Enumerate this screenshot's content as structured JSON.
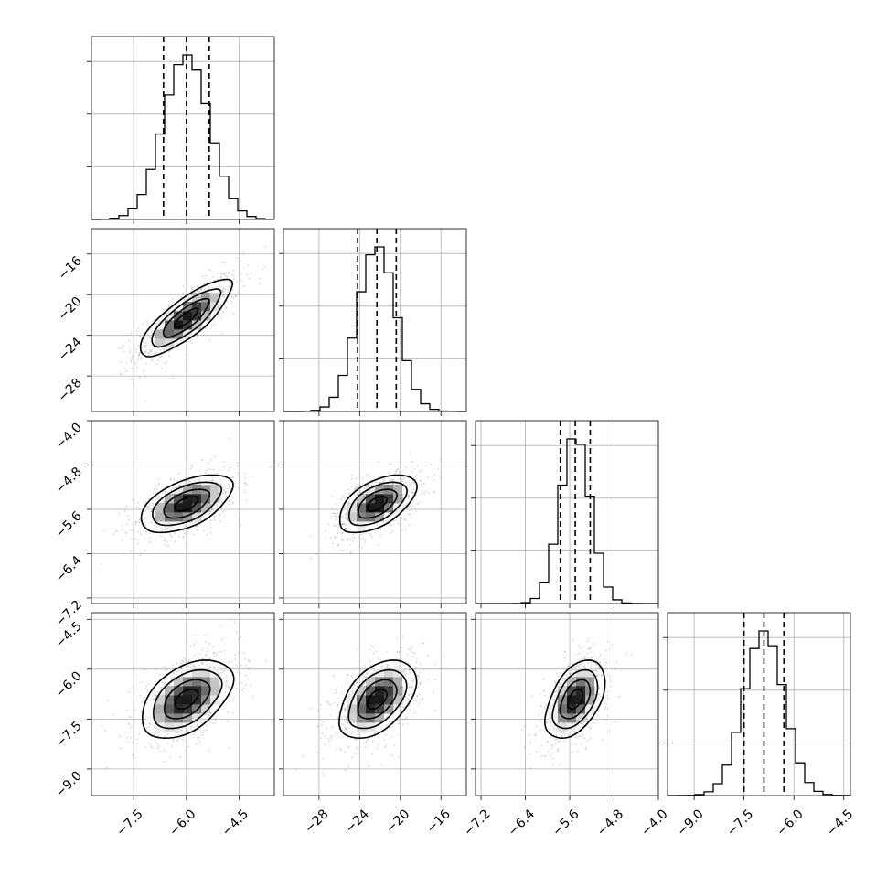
{
  "chart_data": {
    "type": "corner",
    "colors": {
      "points": "#8a8a8a",
      "lines": "#000000",
      "grid": "#b0b0b0"
    },
    "grid": true,
    "parameters": [
      {
        "range": [
          -8.7,
          -3.5
        ],
        "ticks": [
          -7.5,
          -6.0,
          -4.5
        ],
        "tick_labels": [
          "−7.5",
          "−6.0",
          "−4.5"
        ],
        "mean": -6.0,
        "std": 0.65,
        "quantiles": [
          -6.65,
          -6.0,
          -5.35
        ]
      },
      {
        "range": [
          -31.5,
          -13.5
        ],
        "ticks": [
          -28,
          -24,
          -20,
          -16
        ],
        "tick_labels": [
          "−28",
          "−24",
          "−20",
          "−16"
        ],
        "mean": -22.3,
        "std": 1.9,
        "quantiles": [
          -24.2,
          -22.3,
          -20.4
        ]
      },
      {
        "range": [
          -7.3,
          -4.0
        ],
        "ticks": [
          -7.2,
          -6.4,
          -5.6,
          -4.8,
          -4.0
        ],
        "tick_labels": [
          "−7.2",
          "−6.4",
          "−5.6",
          "−4.8",
          "−4.0"
        ],
        "mean": -5.5,
        "std": 0.27,
        "quantiles": [
          -5.77,
          -5.5,
          -5.23
        ]
      },
      {
        "range": [
          -9.8,
          -4.3
        ],
        "ticks": [
          -9.0,
          -7.5,
          -6.0,
          -4.5
        ],
        "tick_labels": [
          "−9.0",
          "−7.5",
          "−6.0",
          "−4.5"
        ],
        "mean": -6.9,
        "std": 0.6,
        "quantiles": [
          -7.5,
          -6.9,
          -6.3
        ]
      }
    ],
    "correlations": [
      {
        "i": 1,
        "j": 0,
        "rho": 0.8
      },
      {
        "i": 2,
        "j": 0,
        "rho": 0.55
      },
      {
        "i": 2,
        "j": 1,
        "rho": 0.55
      },
      {
        "i": 3,
        "j": 0,
        "rho": 0.5
      },
      {
        "i": 3,
        "j": 1,
        "rho": 0.5
      },
      {
        "i": 3,
        "j": 2,
        "rho": 0.5
      }
    ]
  }
}
